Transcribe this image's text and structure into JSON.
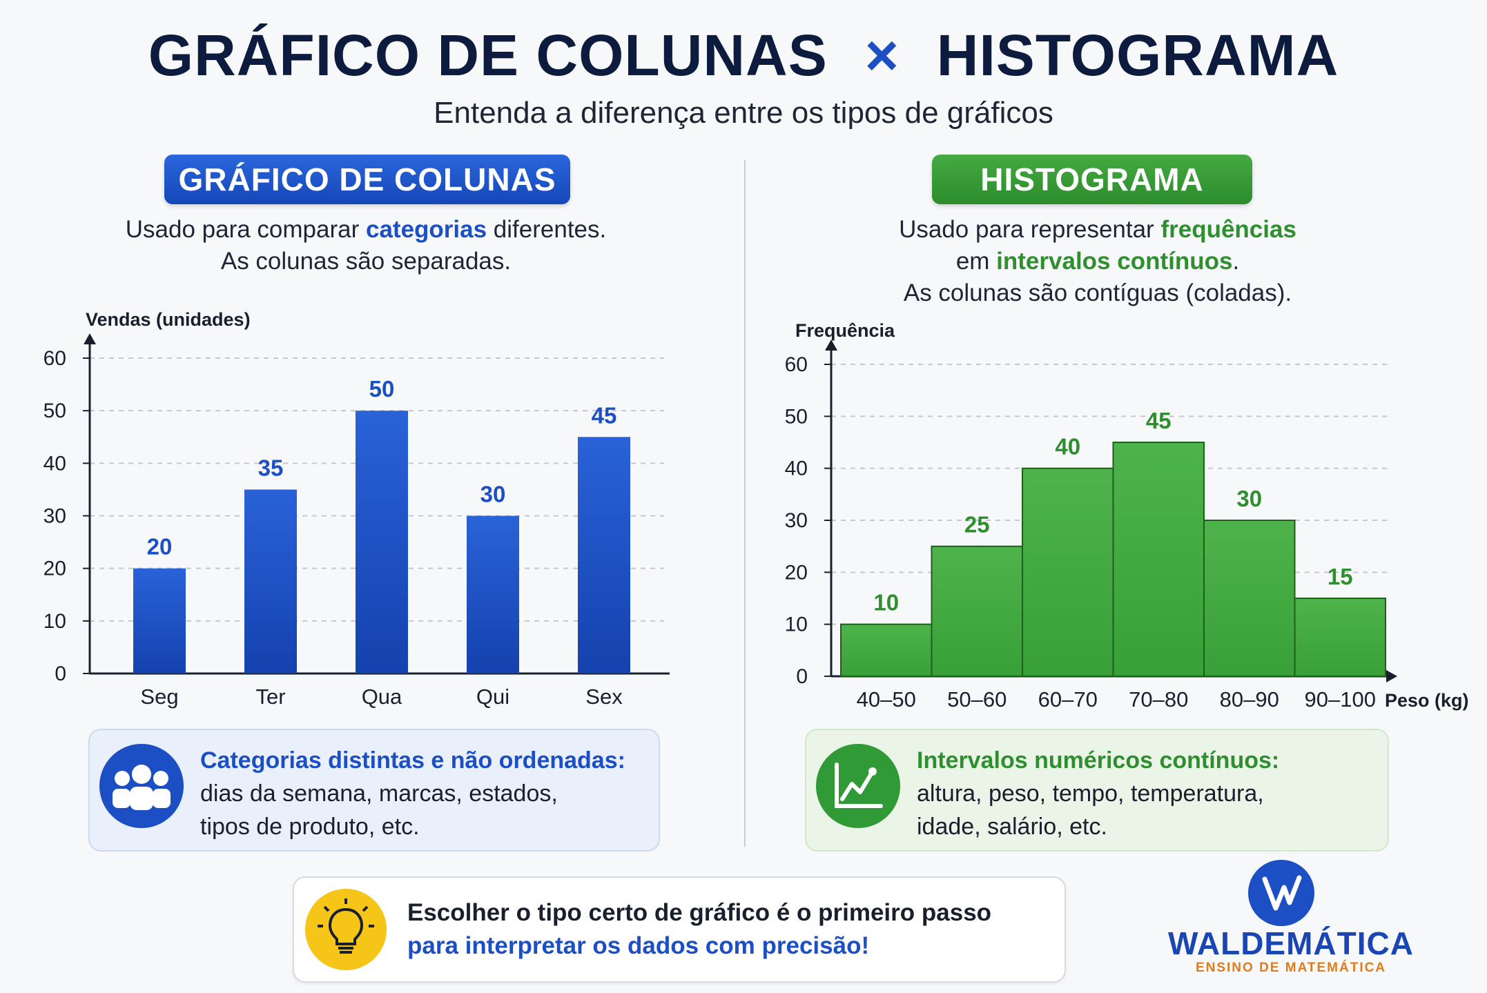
{
  "header": {
    "title_left": "GRÁFICO DE COLUNAS",
    "title_times": "×",
    "title_right": "HISTOGRAMA",
    "subtitle": "Entenda a diferença entre os tipos de gráficos"
  },
  "left_panel": {
    "pill": "GRÁFICO DE COLUNAS",
    "desc_1": "Usado para comparar ",
    "desc_hl": "categorias",
    "desc_2": " diferentes.",
    "desc_line2": "As colunas são separadas.",
    "info_head": "Categorias distintas e não ordenadas:",
    "info_line1": "dias da semana, marcas, estados,",
    "info_line2": "tipos de produto, etc.",
    "info_icon": "people-group-icon"
  },
  "right_panel": {
    "pill": "HISTOGRAMA",
    "desc_1": "Usado para representar ",
    "desc_hl1": "frequências",
    "desc_2": "em ",
    "desc_hl2": "intervalos contínuos",
    "desc_3": ".",
    "desc_line3": "As colunas são contíguas (coladas).",
    "info_head": "Intervalos numéricos contínuos:",
    "info_line1": "altura, peso, tempo, temperatura,",
    "info_line2": "idade, salário, etc.",
    "info_icon": "line-chart-icon"
  },
  "tip": {
    "line1": "Escolher o tipo certo de gráfico é o primeiro passo",
    "line2": "para interpretar os dados com precisão!",
    "icon": "lightbulb-icon"
  },
  "logo": {
    "name": "WALDEMÁTICA",
    "tagline": "ENSINO DE MATEMÁTICA"
  },
  "colors": {
    "blue": "#1d4fc4",
    "green": "#3ea43b",
    "navy": "#0d1b3e"
  },
  "chart_data": [
    {
      "type": "bar",
      "ylabel": "Vendas (unidades)",
      "xlabel": "",
      "categories": [
        "Seg",
        "Ter",
        "Qua",
        "Qui",
        "Sex"
      ],
      "values": [
        20,
        35,
        50,
        30,
        45
      ],
      "ylim": [
        0,
        60
      ],
      "yticks": [
        0,
        10,
        20,
        30,
        40,
        50,
        60
      ],
      "grid": true,
      "data_labels": true
    },
    {
      "type": "histogram",
      "ylabel": "Frequência",
      "xlabel": "Peso (kg)",
      "categories": [
        "40–50",
        "50–60",
        "60–70",
        "70–80",
        "80–90",
        "90–100"
      ],
      "values": [
        10,
        25,
        40,
        45,
        30,
        15
      ],
      "ylim": [
        0,
        60
      ],
      "yticks": [
        0,
        10,
        20,
        30,
        40,
        50,
        60
      ],
      "grid": true,
      "data_labels": true
    }
  ]
}
